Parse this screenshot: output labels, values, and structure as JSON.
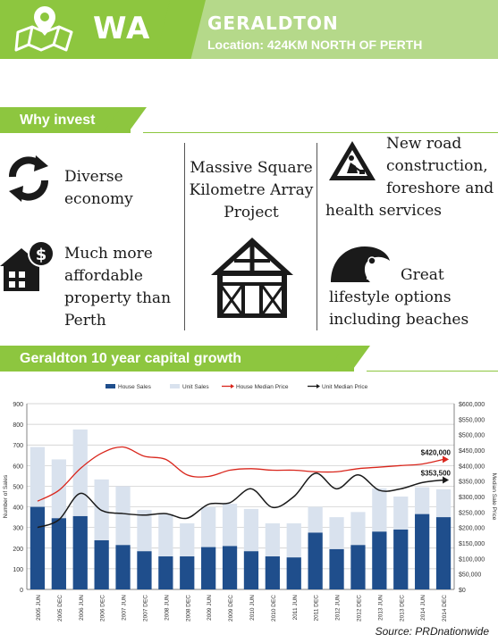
{
  "header": {
    "region": "WA",
    "town": "GERALDTON",
    "location": "Location: 424KM NORTH OF PERTH"
  },
  "why_invest": {
    "title": "Why invest",
    "items": [
      {
        "text": "Diverse economy",
        "icon": "cycle-arrows-icon"
      },
      {
        "text": "Massive Square Kilometre Array Project",
        "icon": "house-frame-icon"
      },
      {
        "text": "New road construction, foreshore and health services",
        "icon": "road-works-sign-icon"
      },
      {
        "text": "Much more affordable property than Perth",
        "icon": "house-dollar-icon"
      },
      {
        "text": "Great lifestyle options including beaches",
        "icon": "surfer-wave-icon"
      }
    ]
  },
  "chart_title": "Geraldton 10 year capital growth",
  "chart_data": {
    "type": "bar",
    "categories": [
      "2005 JUN",
      "2005 DEC",
      "2006 JUN",
      "2006 DEC",
      "2007 JUN",
      "2007 DEC",
      "2008 JUN",
      "2008 DEC",
      "2009 JUN",
      "2009 DEC",
      "2010 JUN",
      "2010 DEC",
      "2011 JUN",
      "2011 DEC",
      "2012 JUN",
      "2012 DEC",
      "2013 JUN",
      "2013 DEC",
      "2014 JUN",
      "2014 DEC"
    ],
    "series": [
      {
        "name": "House Sales",
        "kind": "bar",
        "color": "#1f4e8c",
        "values": [
          400,
          345,
          355,
          238,
          215,
          185,
          160,
          160,
          205,
          210,
          185,
          160,
          155,
          275,
          195,
          215,
          280,
          290,
          365,
          350
        ]
      },
      {
        "name": "Unit Sales",
        "kind": "bar",
        "color": "#d9e2ee",
        "values": [
          290,
          285,
          420,
          295,
          285,
          200,
          205,
          160,
          195,
          205,
          205,
          160,
          165,
          125,
          155,
          160,
          210,
          160,
          130,
          135
        ]
      },
      {
        "name": "House Median Price",
        "kind": "line",
        "color": "#d9261c",
        "values": [
          285000,
          320000,
          390000,
          440000,
          460000,
          430000,
          420000,
          370000,
          365000,
          385000,
          390000,
          385000,
          385000,
          380000,
          380000,
          390000,
          395000,
          400000,
          405000,
          420000
        ]
      },
      {
        "name": "Unit Median Price",
        "kind": "line",
        "color": "#1a1a1a",
        "values": [
          200000,
          225000,
          310000,
          255000,
          245000,
          240000,
          245000,
          230000,
          275000,
          280000,
          325000,
          265000,
          300000,
          375000,
          325000,
          370000,
          320000,
          325000,
          345000,
          353500
        ]
      }
    ],
    "ylabel": "Number of Sales",
    "y2label": "Median Sale Price",
    "ylim": [
      0,
      900
    ],
    "yticks": [
      "0",
      "100",
      "200",
      "300",
      "400",
      "500",
      "600",
      "700",
      "800",
      "900"
    ],
    "y2lim": [
      0,
      600000
    ],
    "y2ticks": [
      "$0",
      "$50,000",
      "$100,000",
      "$150,000",
      "$200,000",
      "$250,000",
      "$300,000",
      "$350,000",
      "$400,000",
      "$450,000",
      "$500,000",
      "$550,000",
      "$600,000"
    ],
    "annotations": [
      {
        "label": "$420,000",
        "series": "House Median Price",
        "value": 420000
      },
      {
        "label": "$353,500",
        "series": "Unit Median Price",
        "value": 353500
      }
    ],
    "grid": true,
    "legend": "top"
  },
  "source": "Source: PRDnationwide"
}
